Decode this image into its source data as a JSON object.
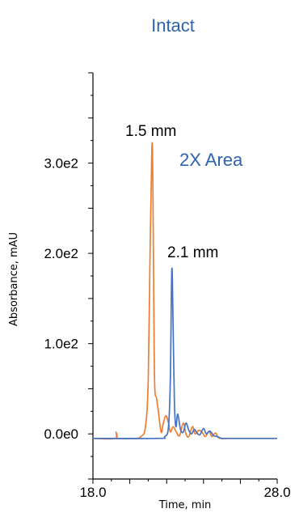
{
  "chart_data": {
    "type": "line",
    "title": "Intact",
    "xlabel": "Time, min",
    "ylabel": "Absorbance, mAU",
    "xlim": [
      18.0,
      28.0
    ],
    "ylim": [
      -50,
      400
    ],
    "x_ticks": [
      "18.0",
      "28.0"
    ],
    "y_ticks": [
      {
        "value": 0,
        "label": "0.0e0"
      },
      {
        "value": 100,
        "label": "1.0e2"
      },
      {
        "value": 200,
        "label": "2.0e2"
      },
      {
        "value": 300,
        "label": "3.0e2"
      }
    ],
    "grid": false,
    "colors": {
      "orange": "#ED7D31",
      "blue": "#4472C4",
      "title": "#2E64AE"
    },
    "annotations": [
      {
        "text": "1.5 mm",
        "color": "#000000"
      },
      {
        "text": "2X Area",
        "color": "#2E64AE"
      },
      {
        "text": "2.1 mm",
        "color": "#000000"
      }
    ],
    "series": [
      {
        "color": "#ED7D31",
        "x": [
          18.0,
          19.2,
          19.25,
          19.3,
          19.35,
          19.4,
          20.3,
          20.6,
          20.85,
          21.0,
          21.1,
          21.2,
          21.25,
          21.3,
          21.35,
          21.45,
          21.55,
          21.7,
          21.8,
          21.95,
          22.1,
          22.2,
          22.35,
          22.5,
          22.7,
          22.9,
          23.05,
          23.2,
          23.4,
          23.55,
          23.75,
          23.95,
          24.1,
          24.3,
          24.45,
          24.65,
          24.8,
          25.0,
          25.3,
          25.6,
          26.0,
          28.0
        ],
        "y": [
          -5,
          -5,
          2,
          -5,
          -5,
          -5,
          -5,
          -3,
          8,
          60,
          200,
          318,
          280,
          150,
          55,
          40,
          25,
          2,
          10,
          20,
          12,
          2,
          8,
          3,
          -2,
          12,
          0,
          -3,
          8,
          0,
          4,
          1,
          -3,
          3,
          -3,
          1,
          -4,
          -5,
          -5,
          -5,
          -5,
          -5
        ]
      },
      {
        "color": "#4472C4",
        "x": [
          18.0,
          21.5,
          21.9,
          22.1,
          22.2,
          22.28,
          22.35,
          22.42,
          22.5,
          22.6,
          22.75,
          22.9,
          23.05,
          23.2,
          23.35,
          23.5,
          23.65,
          23.8,
          24.0,
          24.15,
          24.35,
          24.55,
          24.75,
          25.0,
          25.3,
          28.0
        ],
        "y": [
          -5,
          -5,
          -3,
          8,
          60,
          182,
          120,
          35,
          8,
          22,
          5,
          2,
          12,
          4,
          0,
          5,
          1,
          -1,
          6,
          0,
          3,
          -2,
          -3,
          -5,
          -5,
          -5
        ]
      }
    ]
  }
}
